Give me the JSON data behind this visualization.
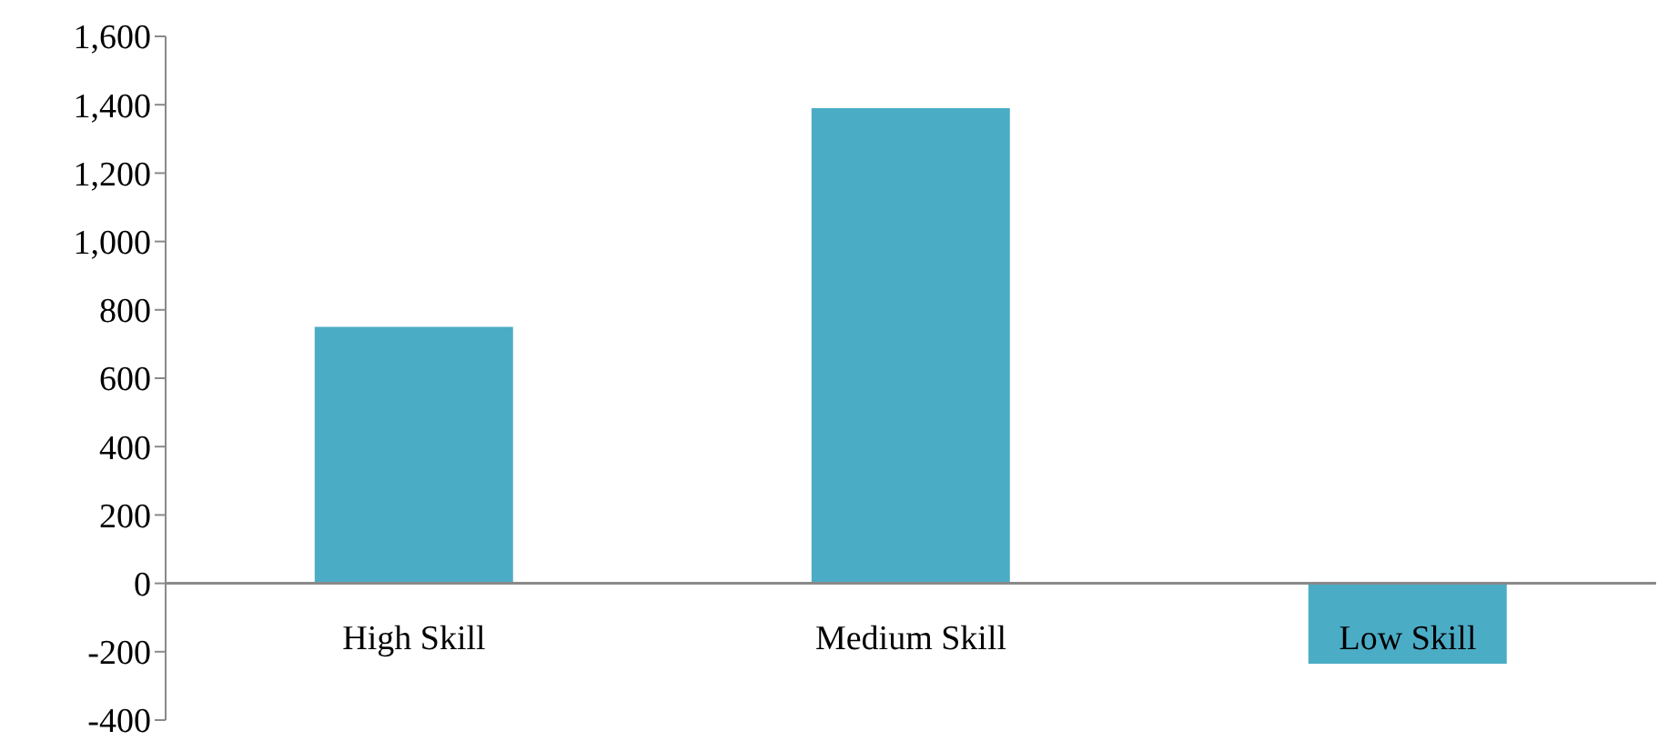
{
  "chart_data": {
    "type": "bar",
    "categories": [
      "High Skill",
      "Medium Skill",
      "Low Skill"
    ],
    "values": [
      750,
      1390,
      -235
    ],
    "color": "#4bacc6",
    "ylim": [
      -400,
      1600
    ],
    "yticks": [
      {
        "value": -400,
        "label": "-400"
      },
      {
        "value": -200,
        "label": "-200"
      },
      0,
      {
        "value": 200,
        "label": "200"
      },
      {
        "value": 400,
        "label": "400"
      },
      {
        "value": 600,
        "label": "600"
      },
      {
        "value": 800,
        "label": "800"
      },
      {
        "value": 1000,
        "label": "1,000"
      },
      {
        "value": 1200,
        "label": "1,200"
      },
      {
        "value": 1400,
        "label": "1,400"
      },
      {
        "value": 1600,
        "label": "1,600"
      }
    ],
    "grid": false
  }
}
